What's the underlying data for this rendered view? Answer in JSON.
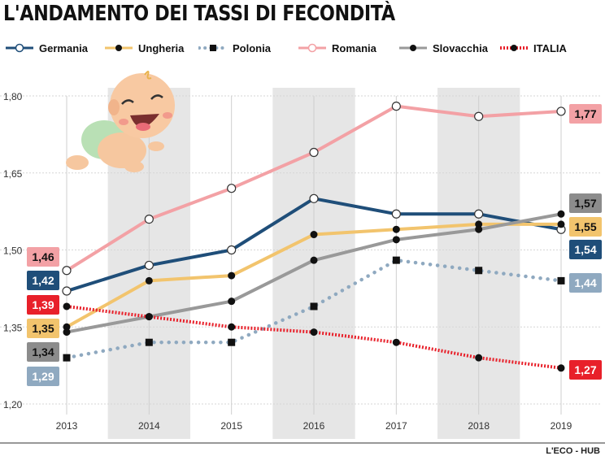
{
  "title": "L'ANDAMENTO DEI TASSI DI FECONDITÀ",
  "credit": "L'ECO - HUB",
  "chart_data": {
    "type": "line",
    "x": [
      2013,
      2014,
      2015,
      2016,
      2017,
      2018,
      2019
    ],
    "ylim": [
      1.2,
      1.8
    ],
    "yticks": [
      "1,20",
      "1,35",
      "1,50",
      "1,65",
      "1,80"
    ],
    "ytick_values": [
      1.2,
      1.35,
      1.5,
      1.65,
      1.8
    ],
    "grid": true,
    "legend": "top",
    "series": [
      {
        "name": "Germania",
        "color": "#1f4e79",
        "style": "solid",
        "marker": "open-circle",
        "values": [
          1.42,
          1.47,
          1.5,
          1.6,
          1.57,
          1.57,
          1.54
        ],
        "label_first": "1,42",
        "label_last": "1,54"
      },
      {
        "name": "Ungheria",
        "color": "#f2c46d",
        "style": "solid",
        "marker": "circle",
        "values": [
          1.35,
          1.44,
          1.45,
          1.53,
          1.54,
          1.55,
          1.55
        ],
        "label_first": "1,35",
        "label_last": "1,55"
      },
      {
        "name": "Polonia",
        "color": "#8fa9c0",
        "style": "dotted",
        "marker": "square",
        "values": [
          1.29,
          1.32,
          1.32,
          1.39,
          1.48,
          1.46,
          1.44
        ],
        "label_first": "1,29",
        "label_last": "1,44"
      },
      {
        "name": "Romania",
        "color": "#f3a1a5",
        "style": "solid",
        "marker": "open-circle",
        "values": [
          1.46,
          1.56,
          1.62,
          1.69,
          1.78,
          1.76,
          1.77
        ],
        "label_first": "1,46",
        "label_last": "1,77"
      },
      {
        "name": "Slovacchia",
        "color": "#999999",
        "style": "solid",
        "marker": "circle",
        "values": [
          1.34,
          1.37,
          1.4,
          1.48,
          1.52,
          1.54,
          1.57
        ],
        "label_first": "1,34",
        "label_last": "1,57"
      },
      {
        "name": "ITALIA",
        "color": "#e8202a",
        "style": "dotted",
        "marker": "circle",
        "values": [
          1.39,
          1.37,
          1.35,
          1.34,
          1.32,
          1.29,
          1.27
        ],
        "label_first": "1,39",
        "label_last": "1,27"
      }
    ],
    "label_colors": {
      "Germania": {
        "bg": "#1f4e79",
        "fg": "#ffffff"
      },
      "Ungheria": {
        "bg": "#f2c46d",
        "fg": "#111111"
      },
      "Polonia": {
        "bg": "#8fa9c0",
        "fg": "#ffffff"
      },
      "Romania": {
        "bg": "#f3a1a5",
        "fg": "#111111"
      },
      "Slovacchia": {
        "bg": "#8c8c8c",
        "fg": "#111111"
      },
      "ITALIA": {
        "bg": "#e8202a",
        "fg": "#ffffff"
      }
    }
  }
}
